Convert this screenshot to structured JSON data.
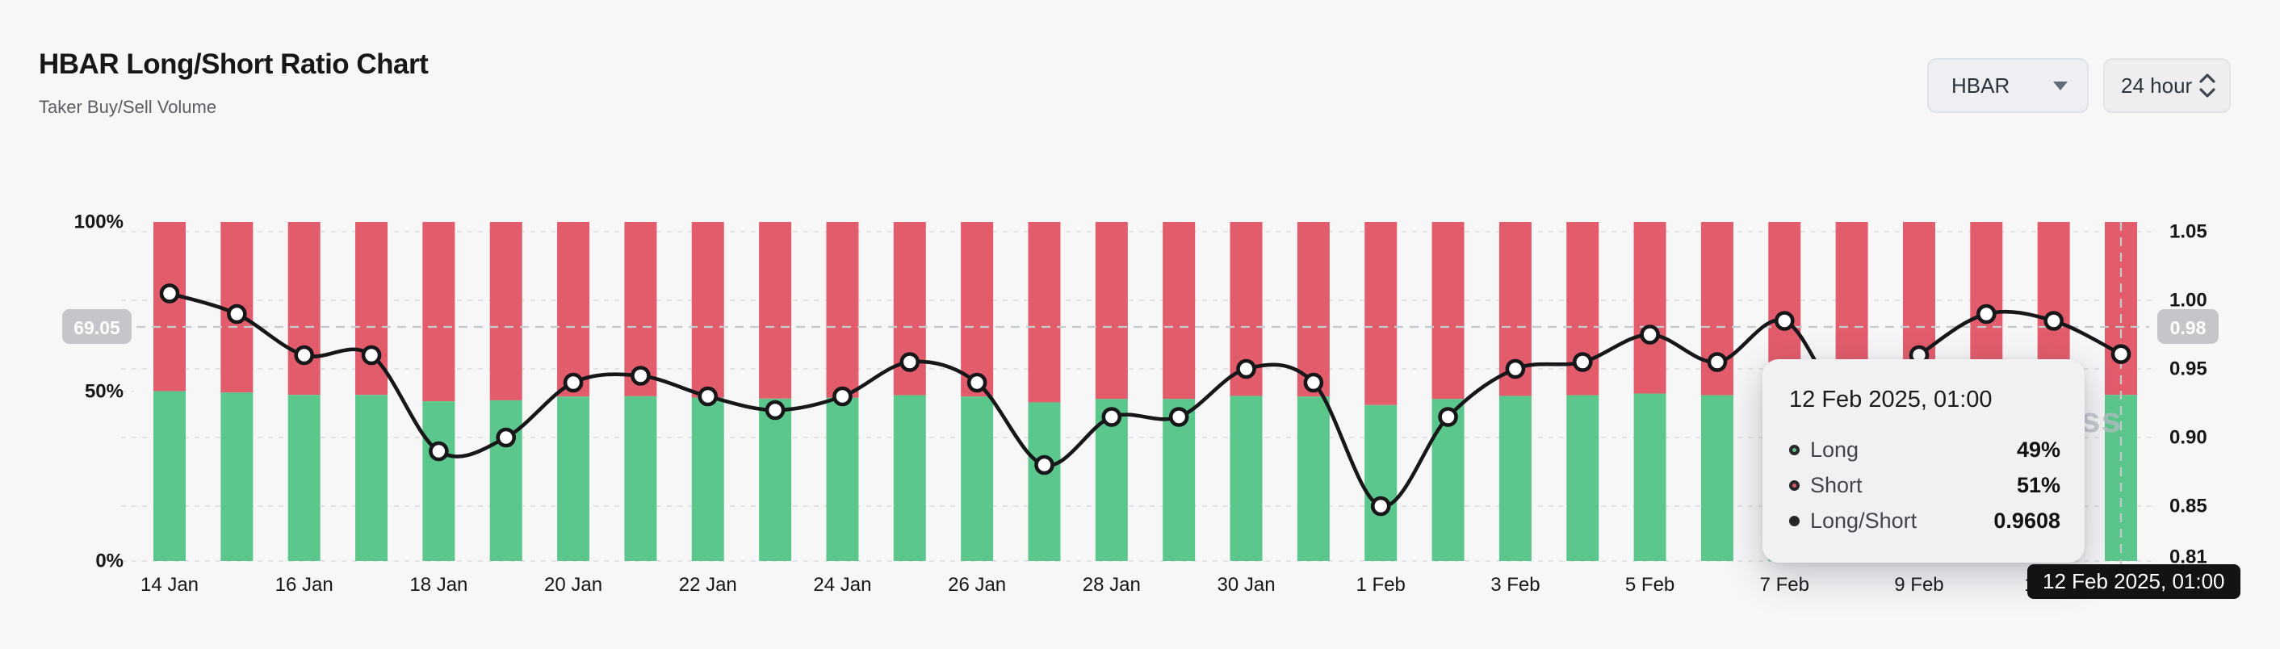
{
  "header": {
    "title": "HBAR Long/Short Ratio Chart",
    "subtitle": "Taker Buy/Sell Volume"
  },
  "controls": {
    "symbol": {
      "value": "HBAR",
      "icon": "caret-down"
    },
    "interval": {
      "value": "24 hour",
      "icon": "chevrons-up-down"
    }
  },
  "chart_data": {
    "type": "bar+line",
    "title": "HBAR Long/Short Ratio Chart",
    "categories": [
      "14 Jan",
      "15 Jan",
      "16 Jan",
      "17 Jan",
      "18 Jan",
      "19 Jan",
      "20 Jan",
      "21 Jan",
      "22 Jan",
      "23 Jan",
      "24 Jan",
      "25 Jan",
      "26 Jan",
      "27 Jan",
      "28 Jan",
      "29 Jan",
      "30 Jan",
      "31 Jan",
      "1 Feb",
      "2 Feb",
      "3 Feb",
      "4 Feb",
      "5 Feb",
      "6 Feb",
      "7 Feb",
      "8 Feb",
      "9 Feb",
      "10 Feb",
      "11 Feb",
      "12 Feb"
    ],
    "series": [
      {
        "name": "Long",
        "type": "bar",
        "unit": "%",
        "color": "#5cc78c",
        "values": [
          50.1,
          49.7,
          49.0,
          49.0,
          47.1,
          47.4,
          48.5,
          48.6,
          48.2,
          47.9,
          48.2,
          48.9,
          48.5,
          46.8,
          47.8,
          47.8,
          48.7,
          48.5,
          46.0,
          47.8,
          48.7,
          48.9,
          49.4,
          48.9,
          49.6,
          47.9,
          49.0,
          49.7,
          49.6,
          49.0
        ]
      },
      {
        "name": "Short",
        "type": "bar",
        "unit": "%",
        "color": "#e25c6c",
        "values": [
          49.9,
          50.3,
          51.0,
          51.0,
          52.9,
          52.6,
          51.5,
          51.4,
          51.8,
          52.1,
          51.8,
          51.1,
          51.5,
          53.2,
          52.2,
          52.2,
          51.3,
          51.5,
          54.0,
          52.2,
          51.3,
          51.1,
          50.6,
          51.1,
          50.4,
          52.1,
          51.0,
          50.3,
          50.4,
          51.0
        ]
      },
      {
        "name": "Long/Short",
        "type": "line",
        "color": "#17171a",
        "values": [
          1.005,
          0.99,
          0.96,
          0.96,
          0.89,
          0.9,
          0.94,
          0.945,
          0.93,
          0.92,
          0.93,
          0.955,
          0.94,
          0.88,
          0.915,
          0.915,
          0.95,
          0.94,
          0.85,
          0.915,
          0.95,
          0.955,
          0.975,
          0.955,
          0.985,
          0.92,
          0.96,
          0.99,
          0.985,
          0.9608
        ]
      }
    ],
    "x_tick_every": 2,
    "y_left": {
      "tick_labels": [
        "100%",
        "50%",
        "0%"
      ],
      "tick_values": [
        100,
        50,
        0
      ],
      "range": [
        0,
        100
      ]
    },
    "y_right": {
      "tick_labels": [
        "1.05",
        "1.00",
        "0.95",
        "0.90",
        "0.85",
        "0.81"
      ],
      "tick_values": [
        1.05,
        1.0,
        0.95,
        0.9,
        0.85,
        0.81
      ],
      "range": [
        0.81,
        1.05
      ]
    },
    "grid": "dashed-horizontal",
    "legend_position": "none",
    "stacked_to": 100
  },
  "crosshair": {
    "left_badge": "69.05",
    "right_badge": "0.98",
    "y_percent": 69.05,
    "x_index": 29,
    "date_label": "12 Feb 2025, 01:00"
  },
  "tooltip": {
    "title": "12 Feb 2025, 01:00",
    "rows": [
      {
        "label": "Long",
        "value": "49%",
        "color": "#5cc78c"
      },
      {
        "label": "Short",
        "value": "51%",
        "color": "#e25c6c"
      },
      {
        "label": "Long/Short",
        "value": "0.9608",
        "color": "#232327"
      }
    ]
  },
  "watermark": "ss",
  "colors": {
    "background": "#f7f7f8",
    "long": "#5cc78c",
    "short": "#e25c6c",
    "line": "#17171a",
    "grid": "#e3e3e7",
    "crosshair": "#c6c9ce",
    "badge_bg": "#c5c5ca",
    "axis_text": "#17171a"
  }
}
